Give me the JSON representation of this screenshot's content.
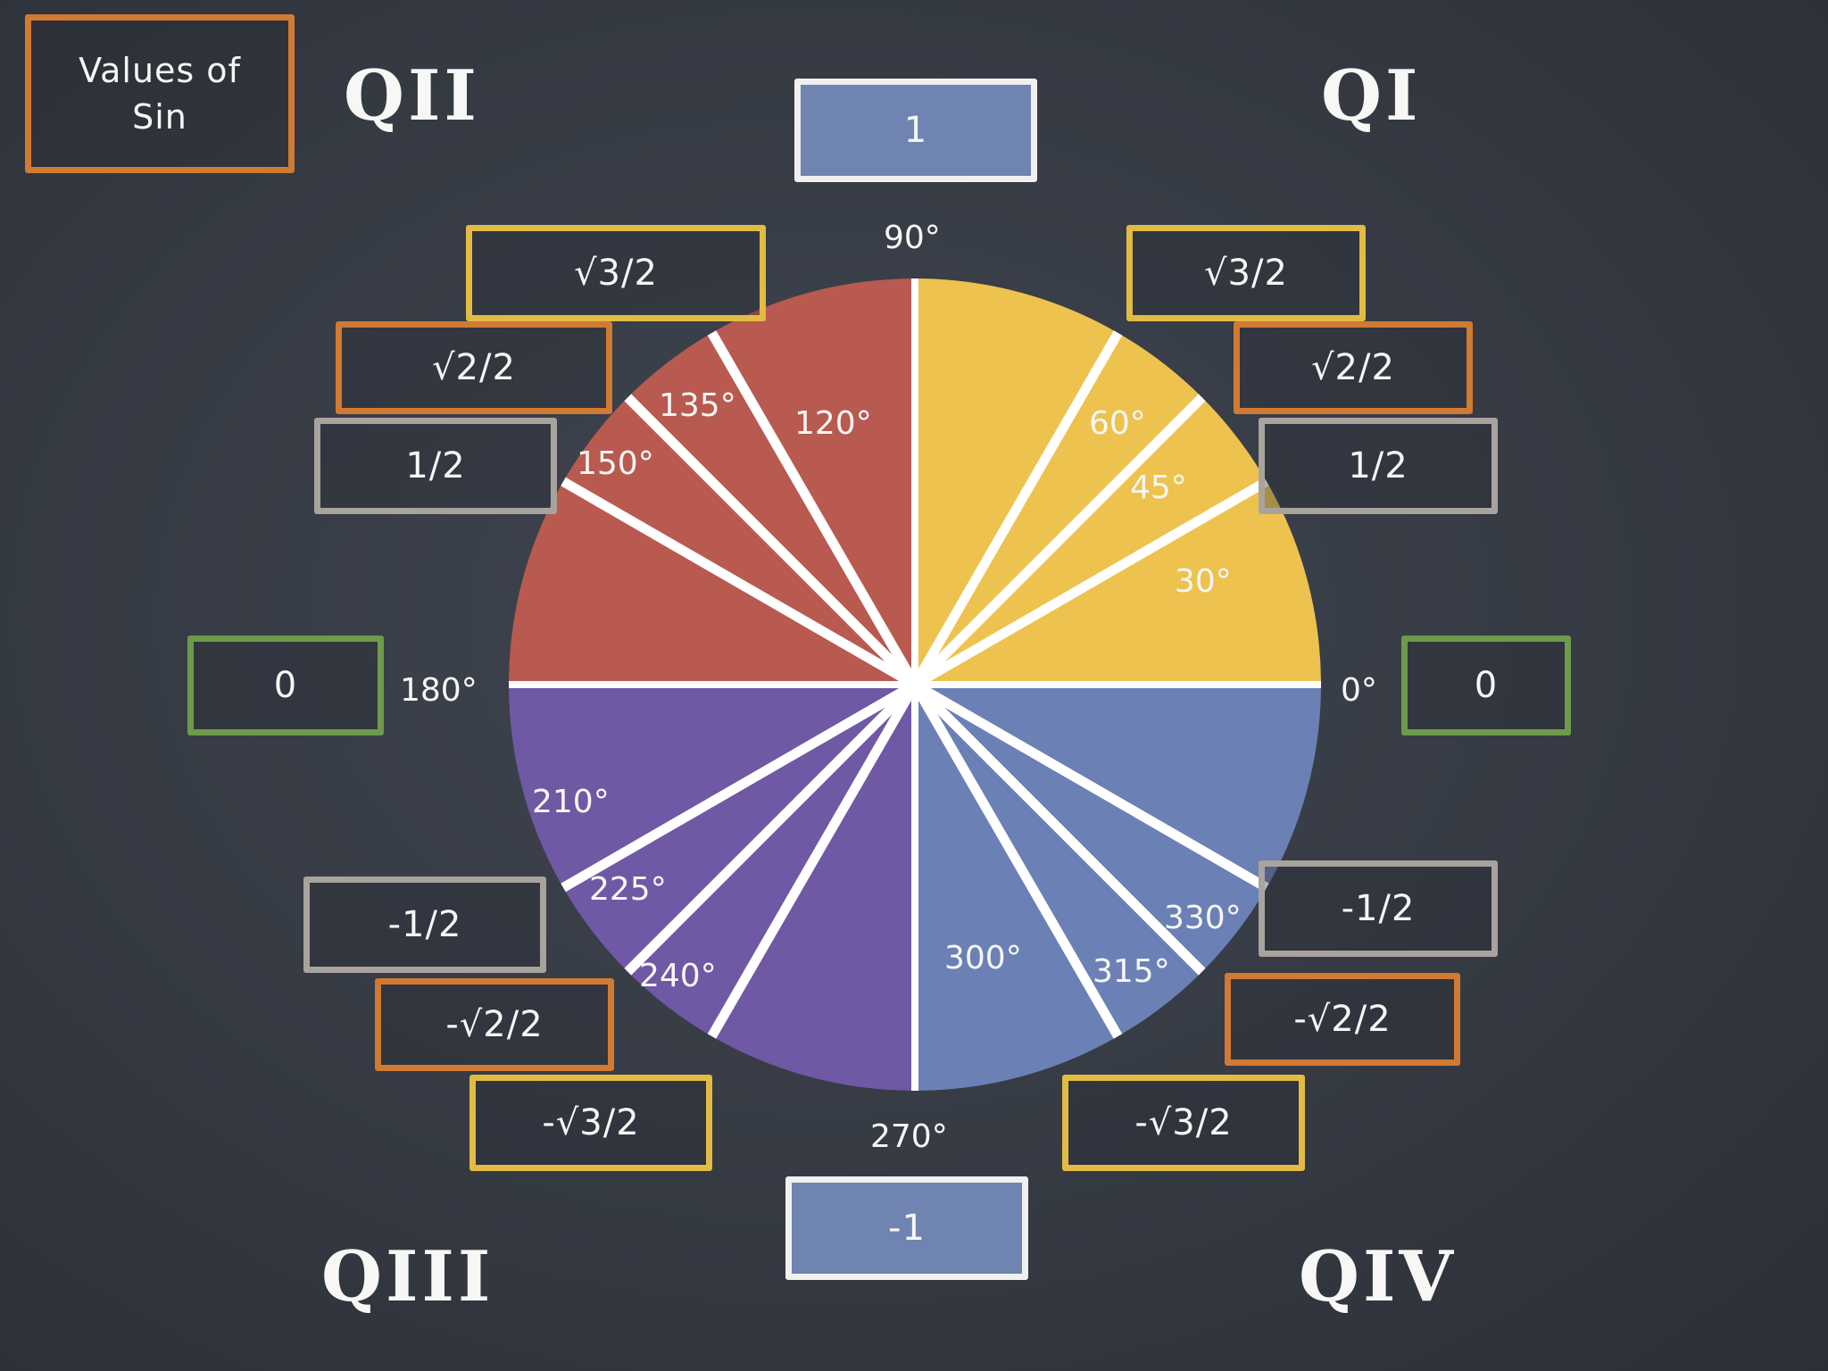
{
  "title": {
    "line1": "Values of",
    "line2": "Sin"
  },
  "quadrants": {
    "q1": "QI",
    "q2": "QII",
    "q3": "QIII",
    "q4": "QIV"
  },
  "values": {
    "v90": "1",
    "v270": "-1",
    "q1_sqrt3": "√3/2",
    "q1_sqrt2": "√2/2",
    "q1_half": "1/2",
    "q2_sqrt3": "√3/2",
    "q2_sqrt2": "√2/2",
    "q2_half": "1/2",
    "v180": "0",
    "v0": "0",
    "q3_half": "-1/2",
    "q3_sqrt2": "-√2/2",
    "q3_sqrt3": "-√3/2",
    "q4_half": "-1/2",
    "q4_sqrt2": "-√2/2",
    "q4_sqrt3": "-√3/2"
  },
  "angles": {
    "a0": "0°",
    "a30": "30°",
    "a45": "45°",
    "a60": "60°",
    "a90": "90°",
    "a120": "120°",
    "a135": "135°",
    "a150": "150°",
    "a180": "180°",
    "a210": "210°",
    "a225": "225°",
    "a240": "240°",
    "a270": "270°",
    "a300": "300°",
    "a315": "315°",
    "a330": "330°"
  },
  "colors": {
    "q1_fill": "#edc24e",
    "q2_fill": "#b85a50",
    "q3_fill": "#6f58a4",
    "q4_fill": "#6b80b4"
  }
}
